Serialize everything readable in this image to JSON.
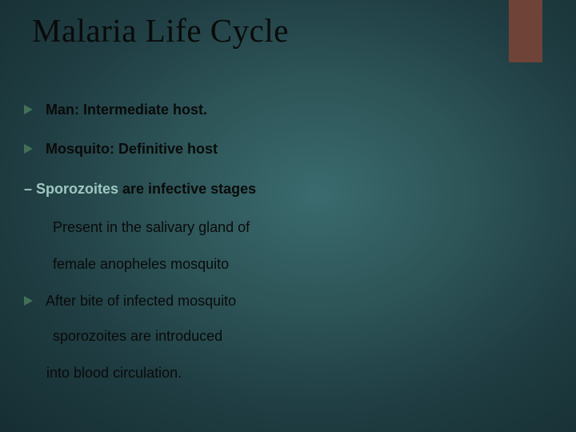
{
  "slide": {
    "title": "Malaria Life Cycle",
    "accent_color": "#6f4338",
    "arrow_color": "#427157",
    "background_gradient": [
      "#3a6b6e",
      "#2d5457",
      "#1f3d42",
      "#162e33"
    ],
    "bullets": [
      {
        "text": "Man: Intermediate host."
      },
      {
        "text": "Mosquito:  Definitive host"
      }
    ],
    "dash": {
      "lead": "– Sporozoites",
      "rest": " are infective stages",
      "lead_color": "#9fc7c1"
    },
    "sub_lines": [
      "Present in the salivary gland of",
      "female anopheles mosquito"
    ],
    "bullet3": "After bite of infected mosquito",
    "sub2_lines": [
      "sporozoites are introduced"
    ],
    "sub3_lines": [
      "into blood circulation."
    ],
    "title_fontsize": 41,
    "body_fontsize": 18
  }
}
